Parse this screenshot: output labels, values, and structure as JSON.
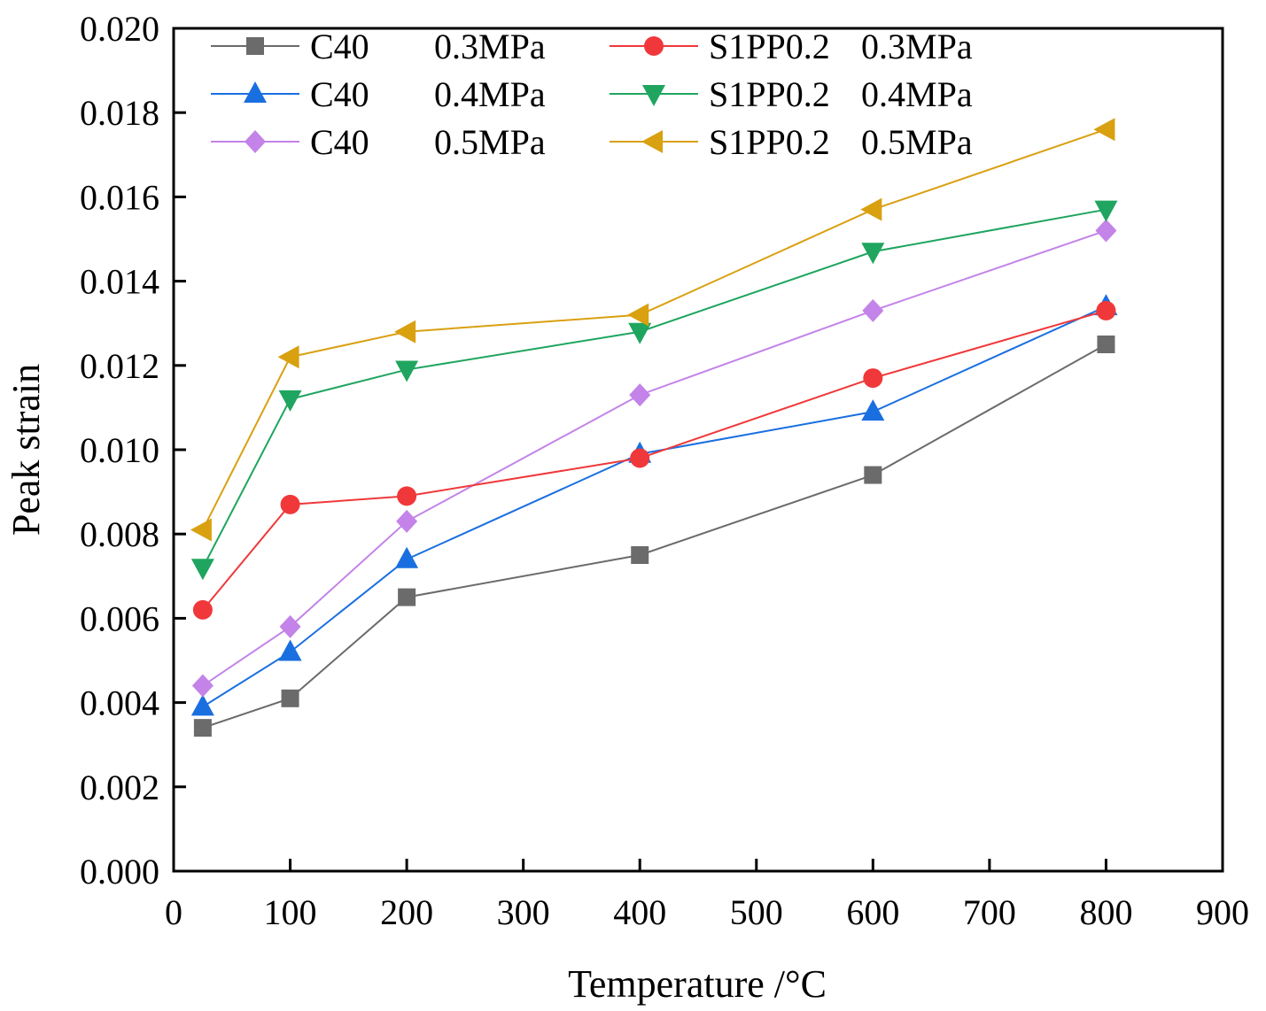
{
  "chart_data": {
    "type": "line",
    "title": "",
    "xlabel": "Temperature /°C",
    "ylabel": "Peak strain",
    "xlim": [
      0,
      900
    ],
    "ylim": [
      0,
      0.02
    ],
    "x_ticks": [
      "0",
      "100",
      "200",
      "300",
      "400",
      "500",
      "600",
      "700",
      "800",
      "900"
    ],
    "y_ticks": [
      "0.000",
      "0.002",
      "0.004",
      "0.006",
      "0.008",
      "0.010",
      "0.012",
      "0.014",
      "0.016",
      "0.018",
      "0.020"
    ],
    "grid": false,
    "legend_position": "top",
    "x": [
      25,
      100,
      200,
      400,
      600,
      800
    ],
    "series": [
      {
        "name": "C40",
        "pressure": "0.3MPa",
        "marker": "square",
        "color": "#6b6b6b",
        "values": [
          0.0034,
          0.0041,
          0.0065,
          0.0075,
          0.0094,
          0.0125
        ]
      },
      {
        "name": "C40",
        "pressure": "0.4MPa",
        "marker": "triangle-up",
        "color": "#1a6fe0",
        "values": [
          0.0039,
          0.0052,
          0.0074,
          0.0099,
          0.0109,
          0.0134
        ]
      },
      {
        "name": "C40",
        "pressure": "0.5MPa",
        "marker": "diamond",
        "color": "#c383e8",
        "values": [
          0.0044,
          0.0058,
          0.0083,
          0.0113,
          0.0133,
          0.0152
        ]
      },
      {
        "name": "S1PP0.2",
        "pressure": "0.3MPa",
        "marker": "circle",
        "color": "#f0383a",
        "values": [
          0.0062,
          0.0087,
          0.0089,
          0.0098,
          0.0117,
          0.0133
        ]
      },
      {
        "name": "S1PP0.2",
        "pressure": "0.4MPa",
        "marker": "triangle-down",
        "color": "#1fa55f",
        "values": [
          0.0072,
          0.0112,
          0.0119,
          0.0128,
          0.0147,
          0.0157
        ]
      },
      {
        "name": "S1PP0.2",
        "pressure": "0.5MPa",
        "marker": "triangle-left",
        "color": "#d9a010",
        "values": [
          0.0081,
          0.0122,
          0.0128,
          0.0132,
          0.0157,
          0.0176
        ]
      }
    ]
  }
}
